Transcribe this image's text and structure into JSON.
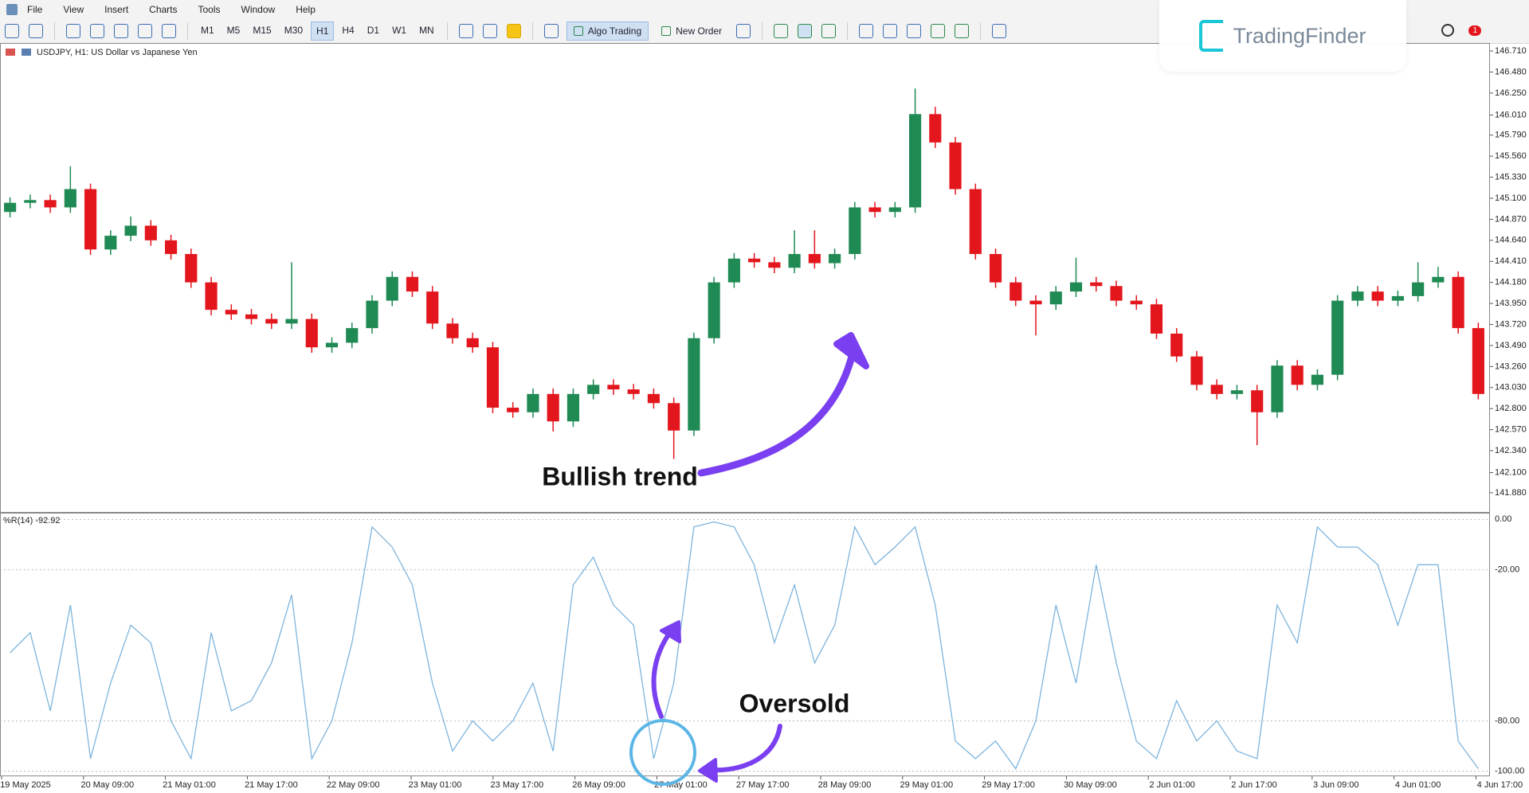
{
  "menu": [
    "File",
    "View",
    "Insert",
    "Charts",
    "Tools",
    "Window",
    "Help"
  ],
  "toolbar": {
    "timeframes": [
      "M1",
      "M5",
      "M15",
      "M30",
      "H1",
      "H4",
      "D1",
      "W1",
      "MN"
    ],
    "buttons": [
      "Algo Trading",
      "New Order"
    ],
    "notifications": "1"
  },
  "logo": "TradingFinder",
  "chart": {
    "symbol": "USDJPY, H1:  US Dollar vs Japanese Yen",
    "up_color": "#1f8a53",
    "down_color": "#e3161d",
    "ylim": [
      141.67,
      146.78
    ],
    "yticks": [
      {
        "value": 146.71,
        "label": "146.710"
      },
      {
        "value": 146.48,
        "label": "146.480"
      },
      {
        "value": 146.25,
        "label": "146.250"
      },
      {
        "value": 146.01,
        "label": "146.010"
      },
      {
        "value": 145.79,
        "label": "145.790"
      },
      {
        "value": 145.56,
        "label": "145.560"
      },
      {
        "value": 145.33,
        "label": "145.330"
      },
      {
        "value": 145.1,
        "label": "145.100"
      },
      {
        "value": 144.87,
        "label": "144.870"
      },
      {
        "value": 144.64,
        "label": "144.640"
      },
      {
        "value": 144.41,
        "label": "144.410"
      },
      {
        "value": 144.18,
        "label": "144.180"
      },
      {
        "value": 143.95,
        "label": "143.950"
      },
      {
        "value": 143.72,
        "label": "143.720"
      },
      {
        "value": 143.49,
        "label": "143.490"
      },
      {
        "value": 143.26,
        "label": "143.260"
      },
      {
        "value": 143.03,
        "label": "143.030"
      },
      {
        "value": 142.8,
        "label": "142.800"
      },
      {
        "value": 142.57,
        "label": "142.570"
      },
      {
        "value": 142.34,
        "label": "142.340"
      },
      {
        "value": 142.1,
        "label": "142.100"
      },
      {
        "value": 141.88,
        "label": "141.880"
      }
    ],
    "candles": [
      [
        144.95,
        145.11,
        144.89,
        145.05
      ],
      [
        145.05,
        145.14,
        144.99,
        145.08
      ],
      [
        145.08,
        145.14,
        144.94,
        145.0
      ],
      [
        145.0,
        145.45,
        144.94,
        145.2
      ],
      [
        145.2,
        145.26,
        144.48,
        144.54
      ],
      [
        144.54,
        144.75,
        144.48,
        144.69
      ],
      [
        144.69,
        144.9,
        144.63,
        144.8
      ],
      [
        144.8,
        144.86,
        144.58,
        144.64
      ],
      [
        144.64,
        144.7,
        144.43,
        144.49
      ],
      [
        144.49,
        144.55,
        144.12,
        144.18
      ],
      [
        144.18,
        144.24,
        143.82,
        143.88
      ],
      [
        143.88,
        143.94,
        143.77,
        143.83
      ],
      [
        143.83,
        143.89,
        143.72,
        143.78
      ],
      [
        143.78,
        143.84,
        143.67,
        143.73
      ],
      [
        143.73,
        144.4,
        143.67,
        143.78
      ],
      [
        143.78,
        143.84,
        143.41,
        143.47
      ],
      [
        143.47,
        143.58,
        143.41,
        143.52
      ],
      [
        143.52,
        143.74,
        143.46,
        143.68
      ],
      [
        143.68,
        144.04,
        143.62,
        143.98
      ],
      [
        143.98,
        144.3,
        143.92,
        144.24
      ],
      [
        144.24,
        144.3,
        144.02,
        144.08
      ],
      [
        144.08,
        144.14,
        143.67,
        143.73
      ],
      [
        143.73,
        143.79,
        143.51,
        143.57
      ],
      [
        143.57,
        143.63,
        143.41,
        143.47
      ],
      [
        143.47,
        143.53,
        142.75,
        142.81
      ],
      [
        142.81,
        142.87,
        142.7,
        142.76
      ],
      [
        142.76,
        143.02,
        142.7,
        142.96
      ],
      [
        142.96,
        143.02,
        142.55,
        142.66
      ],
      [
        142.66,
        143.02,
        142.6,
        142.96
      ],
      [
        142.96,
        143.12,
        142.9,
        143.06
      ],
      [
        143.06,
        143.12,
        142.95,
        143.01
      ],
      [
        143.01,
        143.07,
        142.9,
        142.96
      ],
      [
        142.96,
        143.02,
        142.8,
        142.86
      ],
      [
        142.86,
        142.92,
        142.25,
        142.56
      ],
      [
        142.56,
        143.63,
        142.5,
        143.57
      ],
      [
        143.57,
        144.24,
        143.51,
        144.18
      ],
      [
        144.18,
        144.5,
        144.12,
        144.44
      ],
      [
        144.44,
        144.5,
        144.34,
        144.4
      ],
      [
        144.4,
        144.46,
        144.28,
        144.34
      ],
      [
        144.34,
        144.75,
        144.28,
        144.49
      ],
      [
        144.49,
        144.75,
        144.33,
        144.39
      ],
      [
        144.39,
        144.55,
        144.33,
        144.49
      ],
      [
        144.49,
        145.06,
        144.43,
        145.0
      ],
      [
        145.0,
        145.06,
        144.89,
        144.95
      ],
      [
        144.95,
        145.06,
        144.89,
        145.0
      ],
      [
        145.0,
        146.3,
        144.94,
        146.02
      ],
      [
        146.02,
        146.1,
        145.65,
        145.71
      ],
      [
        145.71,
        145.77,
        145.14,
        145.2
      ],
      [
        145.2,
        145.26,
        144.43,
        144.49
      ],
      [
        144.49,
        144.55,
        144.12,
        144.18
      ],
      [
        144.18,
        144.24,
        143.92,
        143.98
      ],
      [
        143.98,
        144.04,
        143.6,
        143.94
      ],
      [
        143.94,
        144.14,
        143.88,
        144.08
      ],
      [
        144.08,
        144.45,
        144.02,
        144.18
      ],
      [
        144.18,
        144.24,
        144.08,
        144.14
      ],
      [
        144.14,
        144.2,
        143.92,
        143.98
      ],
      [
        143.98,
        144.04,
        143.88,
        143.94
      ],
      [
        143.94,
        144.0,
        143.56,
        143.62
      ],
      [
        143.62,
        143.68,
        143.31,
        143.37
      ],
      [
        143.37,
        143.43,
        143.0,
        143.06
      ],
      [
        143.06,
        143.12,
        142.9,
        142.96
      ],
      [
        142.96,
        143.06,
        142.9,
        143.0
      ],
      [
        143.0,
        143.06,
        142.4,
        142.76
      ],
      [
        142.76,
        143.33,
        142.7,
        143.27
      ],
      [
        143.27,
        143.33,
        143.0,
        143.06
      ],
      [
        143.06,
        143.23,
        143.0,
        143.17
      ],
      [
        143.17,
        144.04,
        143.11,
        143.98
      ],
      [
        143.98,
        144.14,
        143.92,
        144.08
      ],
      [
        144.08,
        144.14,
        143.92,
        143.98
      ],
      [
        143.98,
        144.09,
        143.92,
        144.03
      ],
      [
        144.03,
        144.4,
        143.97,
        144.18
      ],
      [
        144.18,
        144.35,
        144.12,
        144.24
      ],
      [
        144.24,
        144.3,
        143.62,
        143.68
      ],
      [
        143.68,
        143.74,
        142.9,
        142.96
      ]
    ]
  },
  "indicator": {
    "label": "%R(14) -92.92",
    "color": "#7db4dc",
    "ylim": [
      -102,
      2
    ],
    "yticks": [
      {
        "value": 0,
        "label": "0.00"
      },
      {
        "value": -20,
        "label": "-20.00"
      },
      {
        "value": -80,
        "label": "-80.00"
      },
      {
        "value": -100,
        "label": "-100.00"
      }
    ],
    "values": [
      -53,
      -45,
      -76,
      -34,
      -95,
      -65,
      -42,
      -49,
      -80,
      -95,
      -45,
      -76,
      -72,
      -57,
      -30,
      -95,
      -80,
      -49,
      -3,
      -11,
      -26,
      -65,
      -92,
      -80,
      -88,
      -80,
      -65,
      -92,
      -26,
      -15,
      -34,
      -42,
      -95,
      -65,
      -3,
      -1,
      -3,
      -18,
      -49,
      -26,
      -57,
      -42,
      -3,
      -18,
      -11,
      -3,
      -34,
      -88,
      -95,
      -88,
      -99,
      -80,
      -34,
      -65,
      -18,
      -57,
      -88,
      -95,
      -72,
      -88,
      -80,
      -92,
      -95,
      -34,
      -49,
      -3,
      -11,
      -11,
      -18,
      -42,
      -18,
      -18,
      -88,
      -99
    ]
  },
  "time_axis": {
    "labels": [
      "19 May 2025",
      "20 May 09:00",
      "21 May 01:00",
      "21 May 17:00",
      "22 May 09:00",
      "23 May 01:00",
      "23 May 17:00",
      "26 May 09:00",
      "27 May 01:00",
      "27 May 17:00",
      "28 May 09:00",
      "29 May 01:00",
      "29 May 17:00",
      "30 May 09:00",
      "2 Jun 01:00",
      "2 Jun 17:00",
      "3 Jun 09:00",
      "4 Jun 01:00",
      "4 Jun 17:00"
    ]
  },
  "annotations": {
    "trend": "Bullish trend",
    "oversold": "Oversold"
  }
}
